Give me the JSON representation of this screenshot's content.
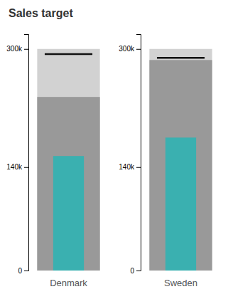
{
  "chart_data": {
    "type": "bullet",
    "title": "Sales target",
    "categories": [
      "Denmark",
      "Sweden"
    ],
    "series": [
      {
        "type": "range",
        "color": "#d2d2d2",
        "values": [
          300000,
          300000
        ]
      },
      {
        "type": "range",
        "color": "#999999",
        "values": [
          235000,
          285000
        ]
      },
      {
        "type": "bar",
        "color": "#3ab0b0",
        "values": [
          155000,
          180000
        ]
      },
      {
        "type": "target",
        "color": "#111111",
        "values": [
          293000,
          288000
        ]
      }
    ],
    "ylim": [
      0,
      320000
    ],
    "yticks": [
      {
        "value": 0,
        "label": "0"
      },
      {
        "value": 140000,
        "label": "140k"
      },
      {
        "value": 300000,
        "label": "300k"
      }
    ]
  }
}
